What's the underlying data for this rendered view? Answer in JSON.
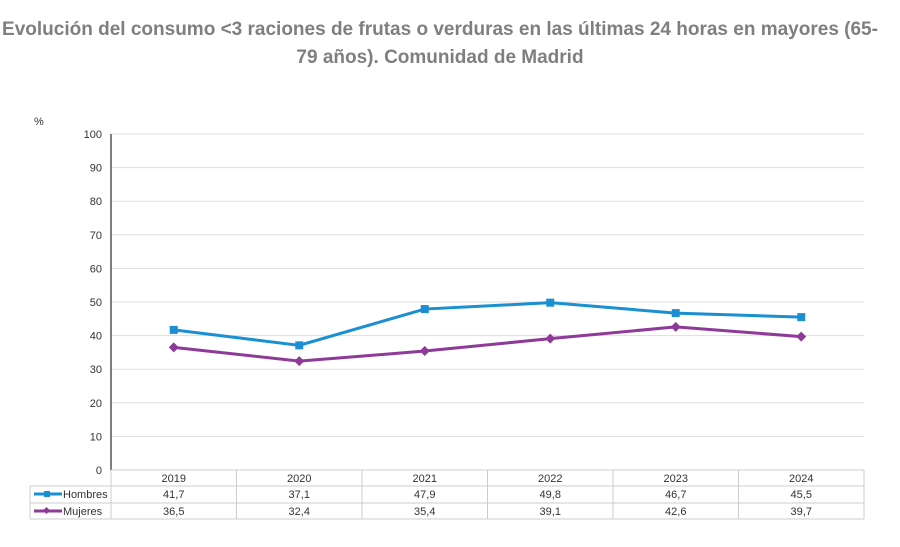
{
  "chart_data": {
    "type": "line",
    "title": "Evolución del consumo <3 raciones de frutas o verduras en las últimas 24 horas en mayores (65-79 años). Comunidad de Madrid",
    "ylabel": "%",
    "ylim": [
      0,
      100
    ],
    "yticks": [
      0,
      10,
      20,
      30,
      40,
      50,
      60,
      70,
      80,
      90,
      100
    ],
    "grid": true,
    "legend": "data-table",
    "categories": [
      "2019",
      "2020",
      "2021",
      "2022",
      "2023",
      "2024"
    ],
    "series": [
      {
        "name": "Hombres",
        "color": "#1a8fd2",
        "marker": "square",
        "values": [
          41.7,
          37.1,
          47.9,
          49.8,
          46.7,
          45.5
        ],
        "labels": [
          "41,7",
          "37,1",
          "47,9",
          "49,8",
          "46,7",
          "45,5"
        ]
      },
      {
        "name": "Mujeres",
        "color": "#8e3a98",
        "marker": "diamond",
        "values": [
          36.5,
          32.4,
          35.4,
          39.1,
          42.6,
          39.7
        ],
        "labels": [
          "36,5",
          "32,4",
          "35,4",
          "39,1",
          "42,6",
          "39,7"
        ]
      }
    ]
  }
}
